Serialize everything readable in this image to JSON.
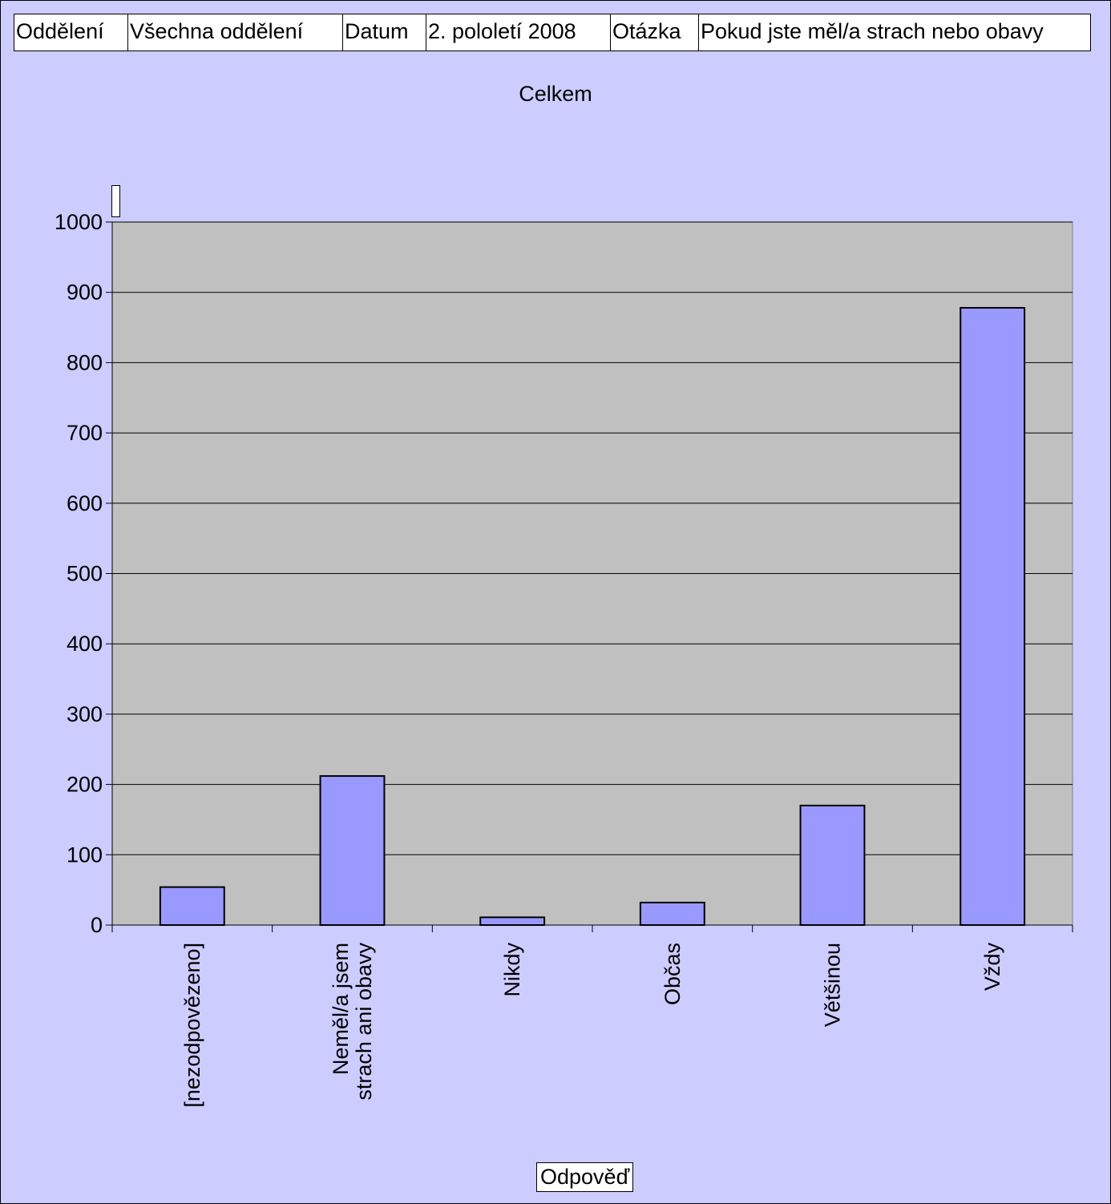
{
  "filter_bar": {
    "department_label": "Oddělení",
    "department_value": "Všechna oddělení",
    "date_label": "Datum",
    "date_value": "2. pololetí 2008",
    "question_label": "Otázka",
    "question_value": "Pokud jste měl/a strach nebo obavy"
  },
  "chart_data": {
    "type": "bar",
    "title": "Celkem",
    "xlabel": "Odpověď",
    "ylabel": "",
    "categories": [
      [
        "[nezodpovězeno]"
      ],
      [
        "Neměl/a jsem",
        "strach ani obavy"
      ],
      [
        "Nikdy"
      ],
      [
        "Občas"
      ],
      [
        "Většinou"
      ],
      [
        "Vždy"
      ]
    ],
    "values": [
      54,
      212,
      11,
      32,
      170,
      878
    ],
    "ylim": [
      0,
      1000
    ],
    "yticks": [
      0,
      100,
      200,
      300,
      400,
      500,
      600,
      700,
      800,
      900,
      1000
    ],
    "grid": true,
    "colors": {
      "background": "#ccccff",
      "plot_area": "#c0c0c0",
      "bar_fill": "#9999ff",
      "bar_stroke": "#000000"
    }
  }
}
